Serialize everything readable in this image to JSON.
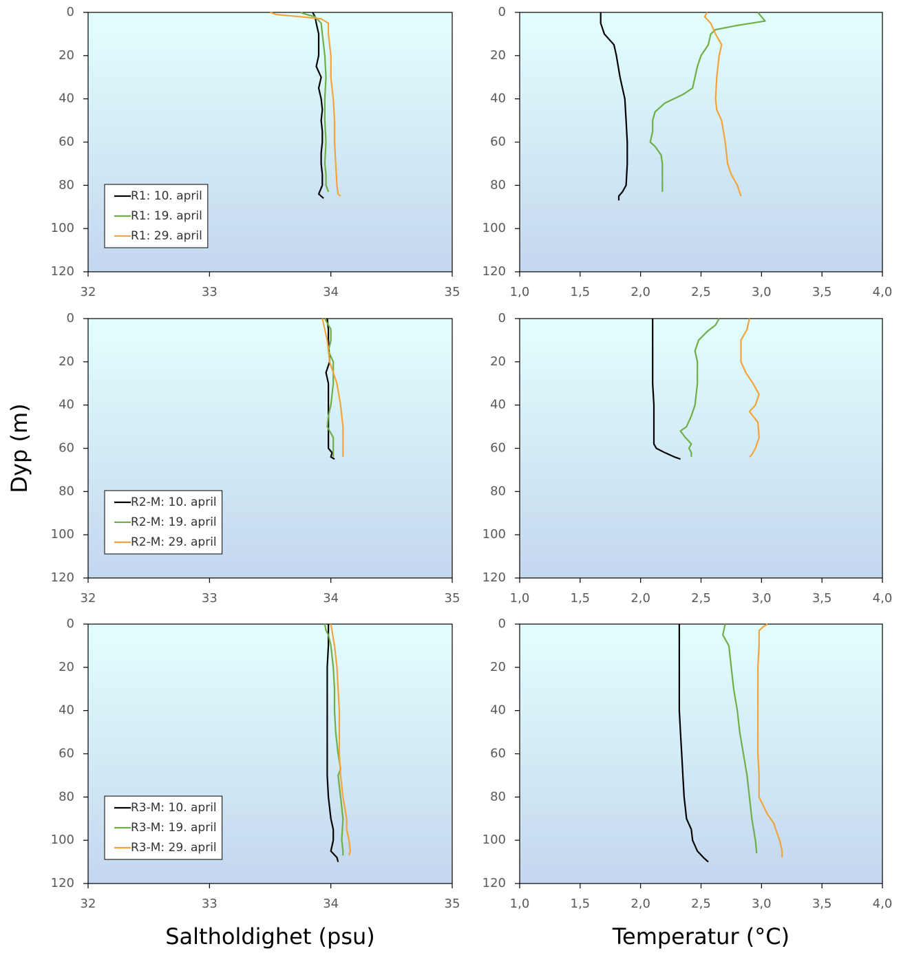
{
  "chart_data": [
    {
      "type": "line",
      "xlim": [
        32,
        35
      ],
      "xticks": [
        32,
        33,
        34,
        35
      ],
      "ylim": [
        0,
        120
      ],
      "y_inverted": true,
      "yticks": [
        0,
        20,
        40,
        60,
        80,
        100,
        120
      ],
      "legend": "lower left",
      "series": [
        {
          "name": "R1: 10. april",
          "color": "#000000",
          "y": [
            0,
            2,
            5,
            10,
            15,
            20,
            25,
            30,
            35,
            40,
            45,
            50,
            55,
            60,
            65,
            70,
            75,
            80,
            84,
            86
          ],
          "x": [
            33.85,
            33.87,
            33.88,
            33.9,
            33.9,
            33.9,
            33.88,
            33.92,
            33.9,
            33.92,
            33.93,
            33.92,
            33.93,
            33.93,
            33.92,
            33.92,
            33.93,
            33.93,
            33.9,
            33.94
          ]
        },
        {
          "name": "R1: 19. april",
          "color": "#70ad47",
          "y": [
            0,
            1,
            2,
            5,
            10,
            20,
            30,
            40,
            50,
            60,
            70,
            75,
            80,
            83
          ],
          "x": [
            33.75,
            33.8,
            33.87,
            33.92,
            33.93,
            33.95,
            33.96,
            33.95,
            33.95,
            33.96,
            33.95,
            33.96,
            33.96,
            33.98
          ]
        },
        {
          "name": "R1: 29. april",
          "color": "#f4a23a",
          "y": [
            0,
            1,
            2,
            3,
            5,
            10,
            20,
            30,
            40,
            50,
            60,
            70,
            80,
            84,
            85
          ],
          "x": [
            33.5,
            33.55,
            33.75,
            33.92,
            33.98,
            33.98,
            34.0,
            34.0,
            34.02,
            34.03,
            34.03,
            34.04,
            34.05,
            34.06,
            34.08
          ]
        }
      ]
    },
    {
      "type": "line",
      "xlim": [
        1,
        4
      ],
      "xticks": [
        {
          "value": 1,
          "label": "1,0"
        },
        {
          "value": 1.5,
          "label": "1,5"
        },
        {
          "value": 2,
          "label": "2,0"
        },
        {
          "value": 2.5,
          "label": "2,5"
        },
        {
          "value": 3,
          "label": "3,0"
        },
        {
          "value": 3.5,
          "label": "3,5"
        },
        {
          "value": 4,
          "label": "4,0"
        }
      ],
      "ylim": [
        0,
        120
      ],
      "y_inverted": true,
      "yticks": [
        0,
        20,
        40,
        60,
        80,
        100,
        120
      ],
      "series": [
        {
          "color": "#000000",
          "y": [
            0,
            5,
            10,
            15,
            20,
            30,
            40,
            50,
            60,
            70,
            80,
            83,
            85,
            87
          ],
          "x": [
            1.67,
            1.67,
            1.7,
            1.78,
            1.8,
            1.83,
            1.87,
            1.88,
            1.89,
            1.89,
            1.88,
            1.85,
            1.82,
            1.82
          ]
        },
        {
          "color": "#70ad47",
          "y": [
            0,
            2,
            4,
            6,
            8,
            10,
            15,
            20,
            25,
            30,
            35,
            38,
            42,
            46,
            50,
            55,
            60,
            62,
            66,
            70,
            80,
            83
          ],
          "x": [
            2.97,
            3.0,
            3.03,
            2.8,
            2.62,
            2.58,
            2.56,
            2.5,
            2.47,
            2.45,
            2.43,
            2.35,
            2.2,
            2.12,
            2.1,
            2.1,
            2.08,
            2.12,
            2.17,
            2.18,
            2.18,
            2.18
          ]
        },
        {
          "color": "#f4a23a",
          "y": [
            0,
            2,
            5,
            10,
            15,
            20,
            30,
            40,
            45,
            50,
            60,
            70,
            75,
            80,
            85
          ],
          "x": [
            2.55,
            2.53,
            2.58,
            2.62,
            2.67,
            2.65,
            2.63,
            2.62,
            2.63,
            2.67,
            2.7,
            2.72,
            2.75,
            2.8,
            2.83
          ]
        }
      ]
    },
    {
      "type": "line",
      "xlim": [
        32,
        35
      ],
      "xticks": [
        32,
        33,
        34,
        35
      ],
      "ylim": [
        0,
        120
      ],
      "y_inverted": true,
      "yticks": [
        0,
        20,
        40,
        60,
        80,
        100,
        120
      ],
      "legend": "lower left",
      "ylabel": "Dyp (m)",
      "series": [
        {
          "name": "R2-M: 10. april",
          "color": "#000000",
          "y": [
            0,
            5,
            10,
            20,
            25,
            30,
            40,
            50,
            55,
            60,
            62,
            64,
            65
          ],
          "x": [
            33.97,
            33.98,
            33.98,
            33.99,
            33.96,
            33.98,
            33.98,
            33.98,
            33.98,
            33.98,
            34.01,
            34.0,
            34.03
          ]
        },
        {
          "name": "R2-M: 19. april",
          "color": "#70ad47",
          "y": [
            0,
            5,
            10,
            15,
            20,
            30,
            40,
            45,
            50,
            55,
            60,
            64
          ],
          "x": [
            33.95,
            34.0,
            34.0,
            33.98,
            34.02,
            34.02,
            34.0,
            33.98,
            33.97,
            34.02,
            34.02,
            34.02
          ]
        },
        {
          "name": "R2-M: 29. april",
          "color": "#f4a23a",
          "y": [
            0,
            5,
            10,
            20,
            30,
            40,
            50,
            55,
            60,
            64
          ],
          "x": [
            33.93,
            33.95,
            33.97,
            33.99,
            34.05,
            34.08,
            34.1,
            34.1,
            34.1,
            34.1
          ]
        }
      ]
    },
    {
      "type": "line",
      "xlim": [
        1,
        4
      ],
      "xticks": [
        {
          "value": 1,
          "label": "1,0"
        },
        {
          "value": 1.5,
          "label": "1,5"
        },
        {
          "value": 2,
          "label": "2,0"
        },
        {
          "value": 2.5,
          "label": "2,5"
        },
        {
          "value": 3,
          "label": "3,0"
        },
        {
          "value": 3.5,
          "label": "3,5"
        },
        {
          "value": 4,
          "label": "4,0"
        }
      ],
      "ylim": [
        0,
        120
      ],
      "y_inverted": true,
      "yticks": [
        0,
        20,
        40,
        60,
        80,
        100,
        120
      ],
      "series": [
        {
          "color": "#000000",
          "y": [
            0,
            10,
            20,
            30,
            40,
            50,
            58,
            60,
            62,
            64,
            65
          ],
          "x": [
            2.1,
            2.1,
            2.1,
            2.1,
            2.11,
            2.11,
            2.11,
            2.13,
            2.2,
            2.28,
            2.33
          ]
        },
        {
          "color": "#70ad47",
          "y": [
            0,
            3,
            6,
            10,
            15,
            20,
            30,
            40,
            45,
            50,
            52,
            55,
            58,
            60,
            62,
            64
          ],
          "x": [
            2.65,
            2.62,
            2.55,
            2.48,
            2.45,
            2.47,
            2.47,
            2.45,
            2.42,
            2.38,
            2.33,
            2.37,
            2.42,
            2.4,
            2.42,
            2.42
          ]
        },
        {
          "color": "#f4a23a",
          "y": [
            0,
            5,
            10,
            20,
            25,
            30,
            35,
            40,
            43,
            48,
            55,
            60,
            63,
            64
          ],
          "x": [
            2.9,
            2.88,
            2.83,
            2.83,
            2.87,
            2.93,
            2.98,
            2.95,
            2.9,
            2.97,
            2.98,
            2.95,
            2.92,
            2.9
          ]
        }
      ]
    },
    {
      "type": "line",
      "xlim": [
        32,
        35
      ],
      "xticks": [
        32,
        33,
        34,
        35
      ],
      "ylim": [
        0,
        120
      ],
      "y_inverted": true,
      "yticks": [
        0,
        20,
        40,
        60,
        80,
        100,
        120
      ],
      "legend": "lower left",
      "xlabel": "Saltholdighet (psu)",
      "series": [
        {
          "name": "R3-M: 10. april",
          "color": "#000000",
          "y": [
            0,
            10,
            20,
            30,
            40,
            50,
            60,
            70,
            80,
            90,
            95,
            100,
            105,
            108,
            110
          ],
          "x": [
            33.98,
            33.98,
            33.97,
            33.97,
            33.97,
            33.97,
            33.97,
            33.97,
            33.98,
            34.0,
            34.02,
            34.02,
            34.0,
            34.05,
            34.06
          ]
        },
        {
          "name": "R3-M: 19. april",
          "color": "#70ad47",
          "y": [
            0,
            3,
            5,
            10,
            20,
            30,
            40,
            50,
            60,
            67,
            70,
            80,
            90,
            100,
            105,
            107
          ],
          "x": [
            33.95,
            33.96,
            33.98,
            34.0,
            34.02,
            34.03,
            34.03,
            34.04,
            34.06,
            34.08,
            34.06,
            34.08,
            34.1,
            34.09,
            34.1,
            34.1
          ]
        },
        {
          "name": "R3-M: 29. april",
          "color": "#f4a23a",
          "y": [
            0,
            10,
            20,
            30,
            40,
            50,
            60,
            70,
            80,
            90,
            95,
            100,
            105,
            107
          ],
          "x": [
            34.0,
            34.03,
            34.05,
            34.06,
            34.07,
            34.07,
            34.07,
            34.08,
            34.1,
            34.13,
            34.13,
            34.15,
            34.16,
            34.15
          ]
        }
      ]
    },
    {
      "type": "line",
      "xlim": [
        1,
        4
      ],
      "xticks": [
        {
          "value": 1,
          "label": "1,0"
        },
        {
          "value": 1.5,
          "label": "1,5"
        },
        {
          "value": 2,
          "label": "2,0"
        },
        {
          "value": 2.5,
          "label": "2,5"
        },
        {
          "value": 3,
          "label": "3,0"
        },
        {
          "value": 3.5,
          "label": "3,5"
        },
        {
          "value": 4,
          "label": "4,0"
        }
      ],
      "ylim": [
        0,
        120
      ],
      "y_inverted": true,
      "yticks": [
        0,
        20,
        40,
        60,
        80,
        100,
        120
      ],
      "xlabel": "Temperatur (°C)",
      "series": [
        {
          "color": "#000000",
          "y": [
            0,
            10,
            20,
            30,
            40,
            50,
            60,
            70,
            80,
            90,
            95,
            100,
            105,
            108,
            110
          ],
          "x": [
            2.32,
            2.32,
            2.32,
            2.32,
            2.32,
            2.33,
            2.34,
            2.35,
            2.36,
            2.38,
            2.42,
            2.43,
            2.47,
            2.52,
            2.56
          ]
        },
        {
          "color": "#70ad47",
          "y": [
            0,
            5,
            10,
            20,
            30,
            40,
            50,
            60,
            70,
            80,
            90,
            100,
            106
          ],
          "x": [
            2.7,
            2.68,
            2.73,
            2.75,
            2.77,
            2.8,
            2.82,
            2.85,
            2.88,
            2.9,
            2.92,
            2.95,
            2.96
          ]
        },
        {
          "color": "#f4a23a",
          "y": [
            0,
            1,
            3,
            10,
            20,
            40,
            60,
            70,
            80,
            88,
            92,
            100,
            105,
            108
          ],
          "x": [
            3.05,
            3.02,
            2.98,
            2.98,
            2.97,
            2.97,
            2.97,
            2.98,
            2.98,
            3.05,
            3.1,
            3.15,
            3.17,
            3.17
          ]
        }
      ]
    }
  ]
}
